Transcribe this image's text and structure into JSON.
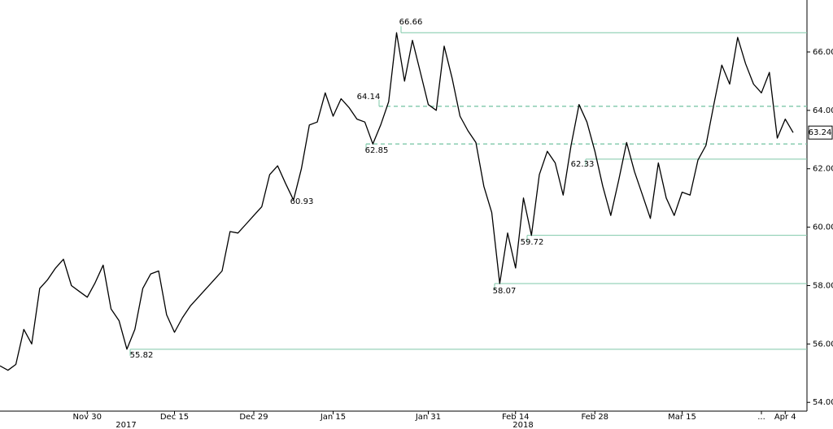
{
  "chart_data": {
    "type": "line",
    "categories": [
      null,
      null,
      null,
      null,
      null,
      null,
      null,
      null,
      null,
      null,
      null,
      "Nov 30",
      null,
      null,
      null,
      null,
      null,
      null,
      null,
      null,
      null,
      null,
      "Dec 15",
      null,
      null,
      null,
      null,
      null,
      null,
      null,
      null,
      null,
      "Dec 29",
      null,
      null,
      null,
      null,
      null,
      null,
      null,
      null,
      null,
      "Jan 15",
      null,
      null,
      null,
      null,
      null,
      null,
      null,
      null,
      null,
      null,
      null,
      "Jan 31",
      null,
      null,
      null,
      null,
      null,
      null,
      null,
      null,
      null,
      null,
      "Feb 14",
      null,
      null,
      null,
      null,
      null,
      null,
      null,
      null,
      null,
      "Feb 28",
      null,
      null,
      null,
      null,
      null,
      null,
      null,
      null,
      null,
      null,
      "Mar 15",
      null,
      null,
      null,
      null,
      null,
      null,
      null,
      null,
      null,
      "...",
      null,
      null,
      "Apr 4",
      null
    ],
    "x_groups": [
      "2017",
      "2018"
    ],
    "series": [
      {
        "color": "#000000",
        "values": [
          55.25,
          55.1,
          55.3,
          56.5,
          56.0,
          57.9,
          58.2,
          58.6,
          58.9,
          58.0,
          57.8,
          57.6,
          58.1,
          58.7,
          57.2,
          56.8,
          55.82,
          56.5,
          57.9,
          58.4,
          58.5,
          57.0,
          56.4,
          56.9,
          57.3,
          57.6,
          57.9,
          58.2,
          58.5,
          59.85,
          59.8,
          60.1,
          60.4,
          60.7,
          61.8,
          62.1,
          61.5,
          60.93,
          62.0,
          63.5,
          63.6,
          64.6,
          63.8,
          64.4,
          64.1,
          63.7,
          63.6,
          62.85,
          63.5,
          64.3,
          66.66,
          65.0,
          66.4,
          65.3,
          64.2,
          64.0,
          66.2,
          65.1,
          63.8,
          63.3,
          62.9,
          61.4,
          60.5,
          58.07,
          59.8,
          58.6,
          61.0,
          59.72,
          61.8,
          62.6,
          62.2,
          61.1,
          62.8,
          64.2,
          63.6,
          62.6,
          61.4,
          60.4,
          61.6,
          62.9,
          61.9,
          61.1,
          60.3,
          62.2,
          61.0,
          60.4,
          61.2,
          61.1,
          62.3,
          62.8,
          64.2,
          65.55,
          64.9,
          66.5,
          65.6,
          64.9,
          64.6,
          65.3,
          63.05,
          63.7,
          63.24
        ]
      }
    ],
    "levels": [
      {
        "value": 66.66,
        "style": "solid"
      },
      {
        "value": 64.14,
        "style": "dashed"
      },
      {
        "value": 62.85,
        "style": "dashed"
      },
      {
        "value": 62.33,
        "style": "solid"
      },
      {
        "value": 60.93,
        "style": "none"
      },
      {
        "value": 59.72,
        "style": "solid"
      },
      {
        "value": 58.07,
        "style": "solid"
      },
      {
        "value": 55.82,
        "style": "solid"
      }
    ],
    "level_color": "#7fc8a9",
    "ylim": [
      53.7,
      67.78
    ],
    "yticks": [
      {
        "value": 54,
        "label": "54.00"
      },
      {
        "value": 56,
        "label": "56.00"
      },
      {
        "value": 58,
        "label": "58.00"
      },
      {
        "value": 60,
        "label": "60.00"
      },
      {
        "value": 62,
        "label": "62.00"
      },
      {
        "value": 64,
        "label": "64.00"
      },
      {
        "value": 66,
        "label": "66.00"
      }
    ]
  }
}
